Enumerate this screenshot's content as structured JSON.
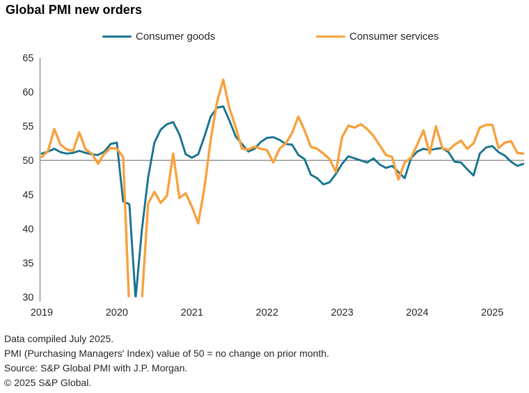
{
  "title": "Global PMI new orders",
  "colors": {
    "goods": "#17738F",
    "services": "#F8A13E",
    "axis": "#8C8C8C",
    "text": "#262626"
  },
  "footnotes": [
    "Data compiled July 2025.",
    "PMI (Purchasing Managers' Index) value of 50 = no change on prior month.",
    "Source: S&P Global PMI with J.P. Morgan.",
    "© 2025 S&P Global."
  ],
  "chart_data": {
    "type": "line",
    "title": "Global PMI new orders",
    "x_unit": "month",
    "x_range": [
      "2019-01",
      "2025-06"
    ],
    "x_tick_labels": [
      "2019",
      "2020",
      "2021",
      "2022",
      "2023",
      "2024",
      "2025"
    ],
    "ylim": [
      30,
      65
    ],
    "y_ticks": [
      65,
      60,
      55,
      50,
      45,
      40,
      35,
      30
    ],
    "reference_line": 50,
    "grid": false,
    "legend_position": "top",
    "clip_below_ymin": true,
    "series": [
      {
        "name": "Consumer goods",
        "color": "#17738F",
        "values": [
          51.0,
          51.3,
          51.7,
          51.2,
          51.0,
          51.1,
          51.4,
          51.1,
          50.9,
          50.8,
          51.3,
          52.4,
          52.6,
          44.0,
          43.6,
          29.8,
          39.8,
          47.5,
          52.6,
          54.5,
          55.3,
          55.6,
          53.8,
          50.9,
          50.4,
          50.9,
          53.5,
          56.4,
          57.7,
          57.9,
          55.8,
          53.5,
          52.4,
          51.3,
          51.7,
          52.7,
          53.3,
          53.4,
          53.0,
          52.4,
          52.3,
          50.8,
          50.2,
          47.9,
          47.4,
          46.5,
          46.8,
          48.0,
          49.5,
          50.6,
          50.3,
          50.0,
          49.7,
          50.3,
          49.4,
          48.9,
          49.2,
          48.3,
          47.4,
          50.3,
          51.3,
          51.7,
          51.5,
          51.7,
          51.8,
          51.2,
          49.8,
          49.7,
          48.7,
          47.8,
          51.0,
          51.9,
          52.1,
          51.2,
          50.7,
          49.8,
          49.2,
          49.5
        ]
      },
      {
        "name": "Consumer services",
        "color": "#F8A13E",
        "values": [
          50.5,
          51.4,
          54.6,
          52.3,
          51.6,
          51.4,
          54.1,
          51.6,
          51.0,
          49.5,
          51.0,
          51.8,
          51.7,
          50.5,
          28.0,
          23.5,
          29.5,
          43.7,
          45.4,
          43.8,
          44.8,
          51.0,
          44.5,
          45.2,
          43.2,
          40.8,
          46.0,
          53.0,
          58.5,
          61.8,
          57.6,
          54.8,
          51.7,
          51.6,
          52.0,
          51.7,
          51.5,
          49.7,
          51.7,
          52.5,
          54.0,
          56.4,
          54.4,
          52.0,
          51.7,
          51.0,
          50.2,
          48.3,
          53.4,
          55.1,
          54.8,
          55.3,
          54.6,
          53.6,
          52.2,
          50.8,
          50.5,
          47.2,
          49.7,
          50.4,
          52.3,
          54.4,
          51.0,
          55.0,
          51.8,
          51.5,
          52.3,
          52.9,
          51.7,
          52.5,
          54.8,
          55.2,
          55.2,
          51.8,
          52.6,
          52.8,
          51.1,
          51.0
        ]
      }
    ]
  }
}
